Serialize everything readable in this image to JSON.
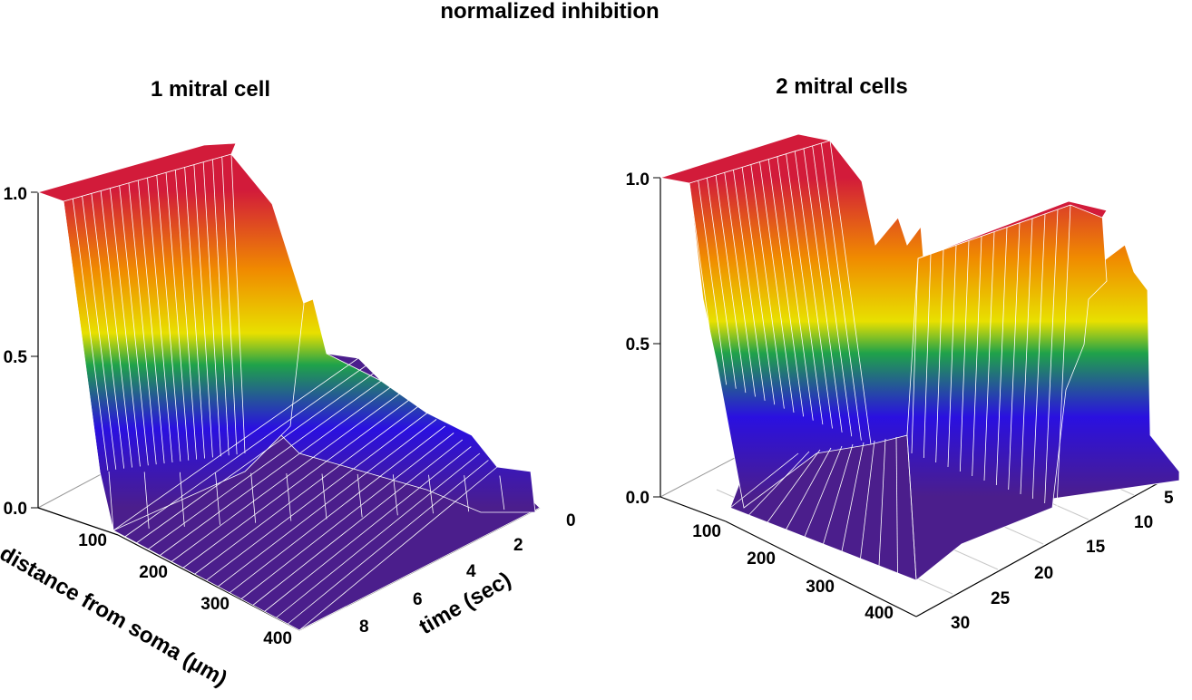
{
  "figure_title": "normalized inhibition",
  "colors": {
    "colormap": [
      "#4b1e8c",
      "#2a10e0",
      "#1fa24a",
      "#e8e000",
      "#f08a00",
      "#d21b3a"
    ],
    "mesh": "#ffffff",
    "axis": "#000000"
  },
  "chart_data": [
    {
      "type": "surface3d",
      "title": "1 mitral cell",
      "zlabel": "",
      "zticks": [
        "0.0",
        "0.5",
        "1.0"
      ],
      "zlim": [
        0,
        1
      ],
      "distance_label": "distance from soma (µm)",
      "distance_ticks": [
        "100",
        "200",
        "300",
        "400"
      ],
      "distance_range": [
        50,
        420
      ],
      "time_label": "time (sec)",
      "time_ticks": [
        "0",
        "2",
        "4",
        "6",
        "8"
      ],
      "time_range": [
        0,
        9.5
      ],
      "description_values": {
        "plateau_level": 1.0,
        "plateau_end_distance": 230,
        "secondary_peak_level": 0.45,
        "secondary_peak_distance": 280,
        "baseline_level": 0.05
      }
    },
    {
      "type": "surface3d",
      "title": "2 mitral cells",
      "zlabel": "",
      "zticks": [
        "0.0",
        "0.5",
        "1.0"
      ],
      "zlim": [
        0,
        1
      ],
      "distance_label": "",
      "distance_ticks": [
        "100",
        "200",
        "300",
        "400"
      ],
      "distance_range": [
        50,
        420
      ],
      "time_label": "",
      "time_ticks": [
        "5",
        "10",
        "15",
        "20",
        "25",
        "30"
      ],
      "time_range": [
        2,
        32
      ],
      "description_values": {
        "first_plateau_level": 1.0,
        "first_plateau_end_distance": 250,
        "second_plateau_level": 0.9,
        "second_plateau_start_distance": 330,
        "trough_level": 0.1
      }
    }
  ]
}
